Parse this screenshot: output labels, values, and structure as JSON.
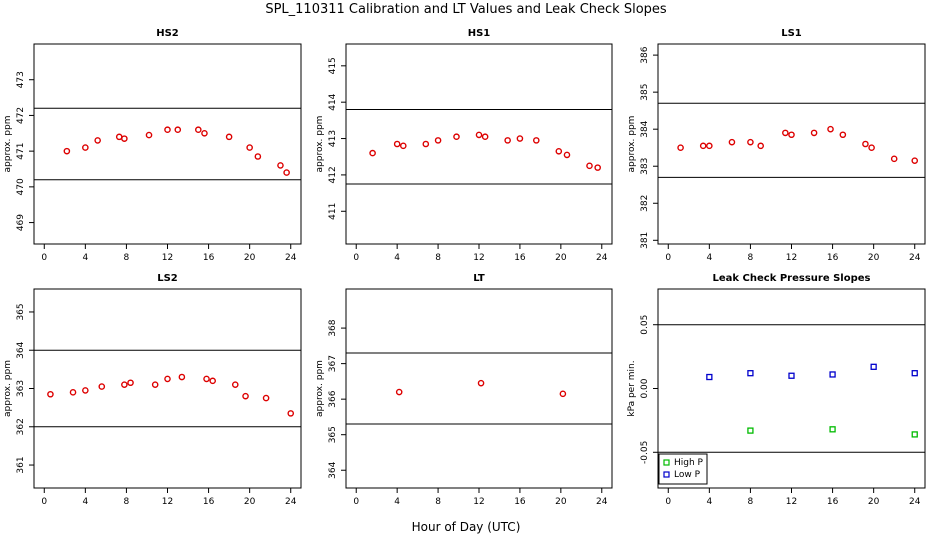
{
  "figure": {
    "title": "SPL_110311  Calibration and LT Values and Leak Check Slopes",
    "xlabel": "Hour of Day (UTC)"
  },
  "chart_data": [
    {
      "type": "scatter",
      "title": "HS2",
      "ylabel": "approx. ppm",
      "xlim": [
        -1,
        25
      ],
      "ylim": [
        468.4,
        474.0
      ],
      "xticks": [
        0,
        4,
        8,
        12,
        16,
        20,
        24
      ],
      "yticks": [
        469,
        470,
        471,
        472,
        473
      ],
      "hlines": [
        472.2,
        470.2
      ],
      "series": [
        {
          "color": "#dd0000",
          "marker": "circle",
          "points": [
            [
              2.2,
              471.0
            ],
            [
              4.0,
              471.1
            ],
            [
              5.2,
              471.3
            ],
            [
              7.3,
              471.4
            ],
            [
              7.8,
              471.35
            ],
            [
              10.2,
              471.45
            ],
            [
              12.0,
              471.6
            ],
            [
              13.0,
              471.6
            ],
            [
              15.0,
              471.6
            ],
            [
              15.6,
              471.5
            ],
            [
              18.0,
              471.4
            ],
            [
              20.0,
              471.1
            ],
            [
              20.8,
              470.85
            ],
            [
              23.0,
              470.6
            ],
            [
              23.6,
              470.4
            ]
          ]
        }
      ]
    },
    {
      "type": "scatter",
      "title": "HS1",
      "ylabel": "approx. ppm",
      "xlim": [
        -1,
        25
      ],
      "ylim": [
        410.1,
        415.6
      ],
      "xticks": [
        0,
        4,
        8,
        12,
        16,
        20,
        24
      ],
      "yticks": [
        411,
        412,
        413,
        414,
        415
      ],
      "hlines": [
        413.8,
        411.75
      ],
      "series": [
        {
          "color": "#dd0000",
          "marker": "circle",
          "points": [
            [
              1.6,
              412.6
            ],
            [
              4.0,
              412.85
            ],
            [
              4.6,
              412.8
            ],
            [
              6.8,
              412.85
            ],
            [
              8.0,
              412.95
            ],
            [
              9.8,
              413.05
            ],
            [
              12.0,
              413.1
            ],
            [
              12.6,
              413.05
            ],
            [
              14.8,
              412.95
            ],
            [
              16.0,
              413.0
            ],
            [
              17.6,
              412.95
            ],
            [
              19.8,
              412.65
            ],
            [
              20.6,
              412.55
            ],
            [
              22.8,
              412.25
            ],
            [
              23.6,
              412.2
            ]
          ]
        }
      ]
    },
    {
      "type": "scatter",
      "title": "LS1",
      "ylabel": "approx. ppm",
      "xlim": [
        -1,
        25
      ],
      "ylim": [
        380.9,
        386.3
      ],
      "xticks": [
        0,
        4,
        8,
        12,
        16,
        20,
        24
      ],
      "yticks": [
        381,
        382,
        383,
        384,
        385,
        386
      ],
      "hlines": [
        384.7,
        382.7
      ],
      "series": [
        {
          "color": "#dd0000",
          "marker": "circle",
          "points": [
            [
              1.2,
              383.5
            ],
            [
              3.4,
              383.55
            ],
            [
              4.0,
              383.55
            ],
            [
              6.2,
              383.65
            ],
            [
              8.0,
              383.65
            ],
            [
              9.0,
              383.55
            ],
            [
              11.4,
              383.9
            ],
            [
              12.0,
              383.85
            ],
            [
              14.2,
              383.9
            ],
            [
              15.8,
              384.0
            ],
            [
              17.0,
              383.85
            ],
            [
              19.2,
              383.6
            ],
            [
              19.8,
              383.5
            ],
            [
              22.0,
              383.2
            ],
            [
              24.0,
              383.15
            ]
          ]
        }
      ]
    },
    {
      "type": "scatter",
      "title": "LS2",
      "ylabel": "approx. ppm",
      "xlim": [
        -1,
        25
      ],
      "ylim": [
        360.4,
        365.6
      ],
      "xticks": [
        0,
        4,
        8,
        12,
        16,
        20,
        24
      ],
      "yticks": [
        361,
        362,
        363,
        364,
        365
      ],
      "hlines": [
        364.0,
        362.0
      ],
      "series": [
        {
          "color": "#dd0000",
          "marker": "circle",
          "points": [
            [
              0.6,
              362.85
            ],
            [
              2.8,
              362.9
            ],
            [
              4.0,
              362.95
            ],
            [
              5.6,
              363.05
            ],
            [
              7.8,
              363.1
            ],
            [
              8.4,
              363.15
            ],
            [
              10.8,
              363.1
            ],
            [
              12.0,
              363.25
            ],
            [
              13.4,
              363.3
            ],
            [
              15.8,
              363.25
            ],
            [
              16.4,
              363.2
            ],
            [
              18.6,
              363.1
            ],
            [
              19.6,
              362.8
            ],
            [
              21.6,
              362.75
            ],
            [
              24.0,
              362.35
            ]
          ]
        }
      ]
    },
    {
      "type": "scatter",
      "title": "LT",
      "ylabel": "approx. ppm",
      "xlim": [
        -1,
        25
      ],
      "ylim": [
        363.5,
        369.1
      ],
      "xticks": [
        0,
        4,
        8,
        12,
        16,
        20,
        24
      ],
      "yticks": [
        364,
        365,
        366,
        367,
        368
      ],
      "hlines": [
        367.3,
        365.3
      ],
      "series": [
        {
          "color": "#dd0000",
          "marker": "circle",
          "points": [
            [
              4.2,
              366.2
            ],
            [
              12.2,
              366.45
            ],
            [
              20.2,
              366.15
            ]
          ]
        }
      ]
    },
    {
      "type": "scatter",
      "title": "Leak Check Pressure Slopes",
      "ylabel": "kPa per min.",
      "xlim": [
        -1,
        25
      ],
      "ylim": [
        -0.078,
        0.078
      ],
      "xticks": [
        0,
        4,
        8,
        12,
        16,
        20,
        24
      ],
      "yticks": [
        -0.05,
        0.0,
        0.05
      ],
      "ytick_labels": [
        "-0.05",
        "0.00",
        "0.05"
      ],
      "hlines": [
        0.05,
        -0.05
      ],
      "legend": {
        "position": "bottom-left"
      },
      "series": [
        {
          "name": "High P",
          "color": "#00bb00",
          "marker": "square",
          "points": [
            [
              8.0,
              -0.033
            ],
            [
              16.0,
              -0.032
            ],
            [
              24.0,
              -0.036
            ]
          ]
        },
        {
          "name": "Low P",
          "color": "#0000cc",
          "marker": "square",
          "points": [
            [
              4.0,
              0.009
            ],
            [
              8.0,
              0.012
            ],
            [
              12.0,
              0.01
            ],
            [
              16.0,
              0.011
            ],
            [
              20.0,
              0.017
            ],
            [
              24.0,
              0.012
            ]
          ]
        }
      ]
    }
  ]
}
